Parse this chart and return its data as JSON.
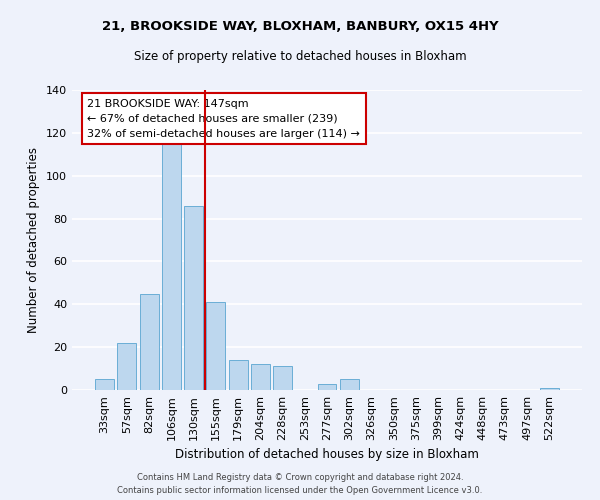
{
  "title1": "21, BROOKSIDE WAY, BLOXHAM, BANBURY, OX15 4HY",
  "title2": "Size of property relative to detached houses in Bloxham",
  "xlabel": "Distribution of detached houses by size in Bloxham",
  "ylabel": "Number of detached properties",
  "bar_labels": [
    "33sqm",
    "57sqm",
    "82sqm",
    "106sqm",
    "130sqm",
    "155sqm",
    "179sqm",
    "204sqm",
    "228sqm",
    "253sqm",
    "277sqm",
    "302sqm",
    "326sqm",
    "350sqm",
    "375sqm",
    "399sqm",
    "424sqm",
    "448sqm",
    "473sqm",
    "497sqm",
    "522sqm"
  ],
  "bar_values": [
    5,
    22,
    45,
    115,
    86,
    41,
    14,
    12,
    11,
    0,
    3,
    5,
    0,
    0,
    0,
    0,
    0,
    0,
    0,
    0,
    1
  ],
  "bar_color": "#bdd7ee",
  "bar_edge_color": "#6aaed6",
  "vline_x": 4.5,
  "vline_color": "#cc0000",
  "annotation_title": "21 BROOKSIDE WAY: 147sqm",
  "annotation_line1": "← 67% of detached houses are smaller (239)",
  "annotation_line2": "32% of semi-detached houses are larger (114) →",
  "annotation_box_color": "#ffffff",
  "annotation_box_edge": "#cc0000",
  "ylim": [
    0,
    140
  ],
  "footnote1": "Contains HM Land Registry data © Crown copyright and database right 2024.",
  "footnote2": "Contains public sector information licensed under the Open Government Licence v3.0.",
  "bg_color": "#eef2fb",
  "grid_color": "#ffffff"
}
